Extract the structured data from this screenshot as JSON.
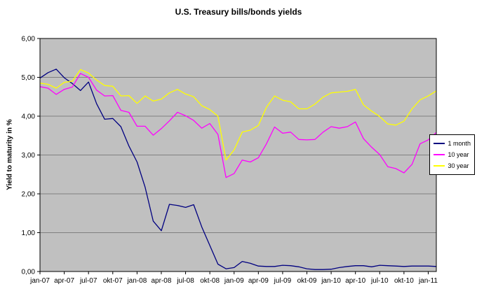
{
  "chart_data": {
    "type": "line",
    "title": "U.S. Treasury bills/bonds yields",
    "ylabel": "Yield to maturity in %",
    "ylim": [
      0,
      6
    ],
    "grid": true,
    "legend_position": "right",
    "y_tick_labels": [
      "0,00",
      "1,00",
      "2,00",
      "3,00",
      "4,00",
      "5,00",
      "6,00"
    ],
    "x_ticks": [
      "jan-07",
      "apr-07",
      "jul-07",
      "okt-07",
      "jan-08",
      "apr-08",
      "jul-08",
      "okt-08",
      "jan-09",
      "apr-09",
      "jul-09",
      "okt-09",
      "jan-10",
      "apr-10",
      "jul-10",
      "okt-10",
      "jan-11"
    ],
    "x_tick_interval": 3,
    "colors": {
      "plot_bg": "#c0c0c0",
      "grid": "#808080",
      "axis": "#000000"
    },
    "series": [
      {
        "name": "1 month",
        "color": "#000080",
        "values": [
          4.98,
          5.12,
          5.21,
          4.99,
          4.84,
          4.66,
          4.88,
          4.32,
          3.92,
          3.94,
          3.73,
          3.23,
          2.82,
          2.17,
          1.3,
          1.05,
          1.73,
          1.7,
          1.65,
          1.72,
          1.15,
          0.67,
          0.19,
          0.07,
          0.1,
          0.26,
          0.21,
          0.14,
          0.13,
          0.13,
          0.16,
          0.15,
          0.12,
          0.07,
          0.05,
          0.05,
          0.06,
          0.1,
          0.13,
          0.15,
          0.15,
          0.12,
          0.16,
          0.15,
          0.14,
          0.13,
          0.14,
          0.14,
          0.14,
          0.13
        ]
      },
      {
        "name": "10 year",
        "color": "#ff00ff",
        "values": [
          4.76,
          4.72,
          4.56,
          4.69,
          4.75,
          5.1,
          5.0,
          4.67,
          4.52,
          4.53,
          4.15,
          4.1,
          3.74,
          3.74,
          3.51,
          3.68,
          3.88,
          4.1,
          4.01,
          3.89,
          3.69,
          3.81,
          3.53,
          2.42,
          2.52,
          2.87,
          2.82,
          2.93,
          3.29,
          3.72,
          3.56,
          3.59,
          3.4,
          3.39,
          3.4,
          3.59,
          3.73,
          3.69,
          3.73,
          3.85,
          3.42,
          3.2,
          3.01,
          2.7,
          2.65,
          2.54,
          2.76,
          3.29,
          3.39,
          3.58
        ]
      },
      {
        "name": "30 year",
        "color": "#ffff00",
        "values": [
          4.85,
          4.82,
          4.72,
          4.87,
          4.9,
          5.2,
          5.11,
          4.93,
          4.79,
          4.77,
          4.52,
          4.53,
          4.33,
          4.52,
          4.39,
          4.44,
          4.6,
          4.69,
          4.57,
          4.5,
          4.27,
          4.17,
          4.0,
          2.87,
          3.13,
          3.59,
          3.64,
          3.76,
          4.23,
          4.52,
          4.41,
          4.37,
          4.19,
          4.19,
          4.31,
          4.49,
          4.6,
          4.62,
          4.64,
          4.69,
          4.29,
          4.13,
          3.99,
          3.8,
          3.77,
          3.87,
          4.19,
          4.42,
          4.52,
          4.65
        ]
      }
    ]
  }
}
